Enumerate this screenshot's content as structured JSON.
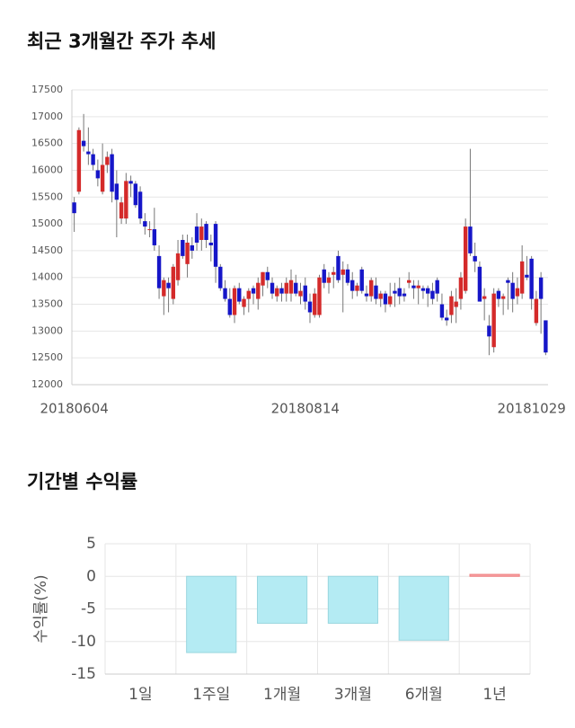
{
  "chart_data": [
    {
      "type": "candlestick",
      "title": "최근 3개월간 주가 추세",
      "categories": [
        "20180604",
        null,
        null,
        null,
        null,
        null,
        null,
        null,
        null,
        null,
        null,
        null,
        null,
        null,
        null,
        null,
        null,
        null,
        null,
        null,
        null,
        null,
        null,
        null,
        null,
        null,
        null,
        null,
        null,
        null,
        null,
        null,
        null,
        null,
        null,
        null,
        null,
        null,
        null,
        null,
        null,
        null,
        null,
        null,
        null,
        null,
        null,
        null,
        null,
        "20180814",
        null,
        null,
        null,
        null,
        null,
        null,
        null,
        null,
        null,
        null,
        null,
        null,
        null,
        null,
        null,
        null,
        null,
        null,
        null,
        null,
        null,
        null,
        null,
        null,
        null,
        null,
        null,
        null,
        null,
        null,
        null,
        null,
        null,
        null,
        null,
        null,
        null,
        null,
        null,
        null,
        null,
        null,
        null,
        null,
        null,
        null,
        null,
        "20181029",
        null,
        null,
        null
      ],
      "open": [
        15400,
        15600,
        16550,
        16350,
        16300,
        16000,
        15600,
        16100,
        16300,
        15750,
        15100,
        15100,
        15800,
        15750,
        15600,
        15050,
        14900,
        14900,
        14400,
        13650,
        13900,
        13600,
        13950,
        14700,
        14250,
        14600,
        14950,
        14700,
        15000,
        14650,
        15000,
        14200,
        13800,
        13600,
        13300,
        13800,
        13450,
        13600,
        13800,
        13600,
        13850,
        14100,
        13900,
        13650,
        13800,
        13700,
        13700,
        13900,
        13650,
        13850,
        13550,
        13300,
        13300,
        14150,
        13900,
        14050,
        14400,
        14050,
        14150,
        13950,
        13750,
        14150,
        13700,
        13650,
        13850,
        13600,
        13700,
        13500,
        13750,
        13800,
        13700,
        13900,
        13850,
        13800,
        13800,
        13800,
        13750,
        13950,
        13500,
        13250,
        13300,
        13450,
        13600,
        13750,
        14950,
        14400,
        14200,
        13600,
        13100,
        12700,
        13750,
        13600,
        13950,
        13900,
        13650,
        13700,
        14050,
        14350,
        13150,
        14000,
        13200
      ],
      "high": [
        15500,
        16800,
        17050,
        16800,
        16400,
        16200,
        16500,
        16350,
        16400,
        16000,
        15500,
        15950,
        15900,
        15800,
        15700,
        15200,
        15050,
        15300,
        14600,
        14000,
        14000,
        14250,
        14700,
        14800,
        14800,
        14750,
        15200,
        15100,
        15050,
        14800,
        15050,
        14250,
        13950,
        13800,
        13850,
        13900,
        13650,
        13800,
        13850,
        14000,
        14100,
        14200,
        14000,
        13850,
        13900,
        14000,
        14150,
        14050,
        13900,
        14000,
        13700,
        13800,
        14050,
        14250,
        14100,
        14200,
        14500,
        14300,
        14250,
        14100,
        13900,
        14200,
        13850,
        14000,
        14000,
        13750,
        13750,
        13900,
        13900,
        14000,
        13800,
        14100,
        13950,
        13950,
        13850,
        13850,
        13900,
        14000,
        13700,
        13400,
        13750,
        13800,
        14100,
        15100,
        16400,
        14650,
        14300,
        13800,
        13300,
        13800,
        13800,
        13700,
        14000,
        14100,
        14000,
        14600,
        14400,
        14400,
        13750,
        14100,
        13200
      ],
      "low": [
        14850,
        15550,
        16350,
        16100,
        16000,
        15700,
        15550,
        15950,
        15400,
        14750,
        15000,
        15000,
        15500,
        15300,
        15000,
        14800,
        14750,
        14500,
        13600,
        13300,
        13350,
        13500,
        13850,
        14350,
        14000,
        14350,
        14500,
        14500,
        14550,
        14300,
        13900,
        13750,
        13550,
        13250,
        13150,
        13500,
        13300,
        13350,
        13500,
        13400,
        13650,
        13800,
        13600,
        13550,
        13550,
        13550,
        13550,
        13650,
        13500,
        13400,
        13150,
        13250,
        13250,
        13800,
        13700,
        13800,
        13900,
        13350,
        13850,
        13600,
        13650,
        13700,
        13550,
        13550,
        13500,
        13450,
        13350,
        13450,
        13450,
        13500,
        13550,
        13800,
        13600,
        13500,
        13600,
        13450,
        13500,
        13550,
        13200,
        13100,
        13150,
        13150,
        13400,
        13700,
        14400,
        14100,
        13550,
        13200,
        12550,
        12600,
        13450,
        13300,
        13400,
        13350,
        13500,
        13600,
        13950,
        13400,
        13100,
        12950,
        12550
      ],
      "close": [
        15200,
        16750,
        16450,
        16300,
        16100,
        15850,
        16100,
        16250,
        15600,
        15450,
        15400,
        15800,
        15750,
        15350,
        15100,
        14950,
        14900,
        14600,
        13800,
        13950,
        13800,
        14200,
        14450,
        14400,
        14650,
        14500,
        14650,
        14950,
        14700,
        14600,
        14200,
        13800,
        13600,
        13300,
        13800,
        13550,
        13600,
        13750,
        13700,
        13900,
        14100,
        13950,
        13700,
        13800,
        13700,
        13900,
        13950,
        13700,
        13750,
        13550,
        13350,
        13700,
        14000,
        13900,
        14000,
        14100,
        13950,
        14150,
        13900,
        13750,
        13850,
        13750,
        13650,
        13950,
        13600,
        13700,
        13500,
        13650,
        13700,
        13650,
        13650,
        13950,
        13800,
        13850,
        13750,
        13700,
        13600,
        13700,
        13250,
        13200,
        13650,
        13550,
        14000,
        14950,
        14450,
        14300,
        13550,
        13650,
        12900,
        13700,
        13600,
        13650,
        13900,
        13600,
        13800,
        14300,
        14000,
        13600,
        13600,
        13600,
        12600
      ],
      "up_color": "#d42a2a",
      "down_color": "#1616c8",
      "ylim": [
        12000,
        17500
      ],
      "yticks": [
        12000,
        12500,
        13000,
        13500,
        14000,
        14500,
        15000,
        15500,
        16000,
        16500,
        17000,
        17500
      ],
      "grid": true
    },
    {
      "type": "bar",
      "title": "기간별 수익률",
      "y_label": "수익률(%)",
      "categories": [
        "1일",
        "1주일",
        "1개월",
        "3개월",
        "6개월",
        "1년"
      ],
      "values": [
        null,
        -11.7,
        -7.2,
        -7.2,
        -9.8,
        0.3
      ],
      "positive_color": "#f7a1a4",
      "negative_color": "#b4ebf3",
      "ylim": [
        -15,
        5
      ],
      "yticks": [
        -15,
        -10,
        -5,
        0,
        5
      ],
      "grid": true
    }
  ]
}
